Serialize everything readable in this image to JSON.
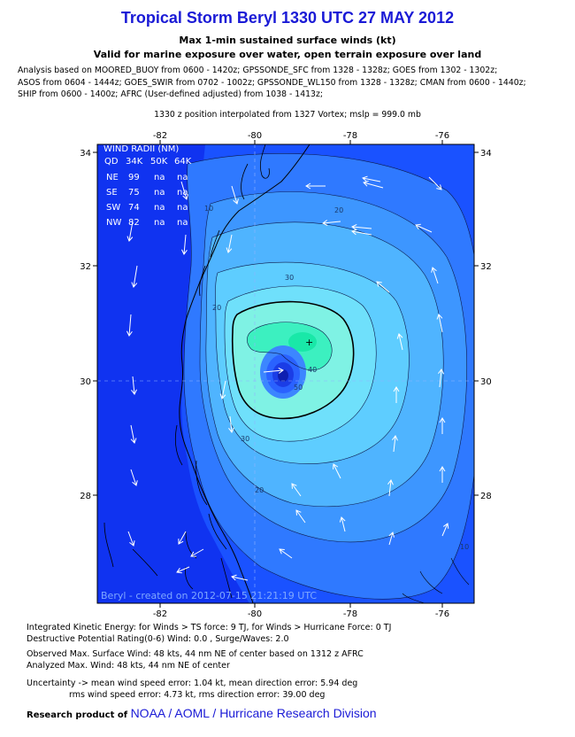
{
  "header": {
    "title": "Tropical Storm Beryl 1330 UTC 27 MAY 2012",
    "subtitle1": "Max 1-min sustained surface winds (kt)",
    "subtitle2": "Valid for marine exposure over water, open terrain exposure over land",
    "analysis_lines": [
      "Analysis based on MOORED_BUOY from 0600 - 1420z; GPSSONDE_SFC from 1328 - 1328z; GOES from 1302 - 1302z;",
      "ASOS from 0604 - 1444z; GOES_SWIR from 0702 - 1002z; GPSSONDE_WL150 from 1328 - 1328z; CMAN from 0600 - 1440z;",
      "SHIP from 0600 - 1400z; AFRC (User-defined adjusted) from 1038 - 1413z;"
    ],
    "position_line": "1330 z position interpolated from 1327 Vortex; mslp = 999.0 mb"
  },
  "map": {
    "lon_ticks": [
      "-82",
      "-80",
      "-78",
      "-76"
    ],
    "lat_ticks": [
      "34",
      "32",
      "30",
      "28"
    ],
    "contour_labels": [
      "10",
      "20",
      "30",
      "20",
      "40",
      "50",
      "30",
      "20",
      "10"
    ],
    "stamp": "Beryl - created on 2012-07-15 21:21:19 UTC",
    "colors": {
      "land": "#1033f0",
      "level_0": "#1a52ff",
      "level_10": "#2f79ff",
      "level_15": "#3d96ff",
      "level_20": "#4fb4ff",
      "level_25": "#5ecdff",
      "level_30": "#6fe0fb",
      "level_34": "#7ff2e4",
      "level_40": "#3cf0c0",
      "level_44": "#19e8a8"
    }
  },
  "wind_radii": {
    "title": "WIND RADII (NM)",
    "header": [
      "QD",
      "34K",
      "50K",
      "64K"
    ],
    "rows": [
      [
        "NE",
        "99",
        "na",
        "na"
      ],
      [
        "SE",
        "75",
        "na",
        "na"
      ],
      [
        "SW",
        "74",
        "na",
        "na"
      ],
      [
        "NW",
        "82",
        "na",
        "na"
      ]
    ]
  },
  "footer": {
    "ike": "Integrated Kinetic Energy: for Winds > TS force: 9 TJ, for Winds > Hurricane Force: 0 TJ",
    "dpr": "Destructive Potential Rating(0-6)   Wind: 0.0 , Surge/Waves: 2.0",
    "observed": "Observed Max. Surface Wind: 48 kts, 44 nm NE of center based on 1312 z AFRC",
    "analyzed": "Analyzed Max. Wind: 48 kts, 44 nm  NE of center",
    "uncert1": "Uncertainty -> mean wind speed error: 1.04 kt, mean direction error: 5.94 deg",
    "uncert2": "rms wind speed error: 4.73 kt, rms direction error: 39.00 deg",
    "credit_prefix": "Research product of",
    "credit_org": "NOAA  /  AOML  /  Hurricane Research Division"
  }
}
